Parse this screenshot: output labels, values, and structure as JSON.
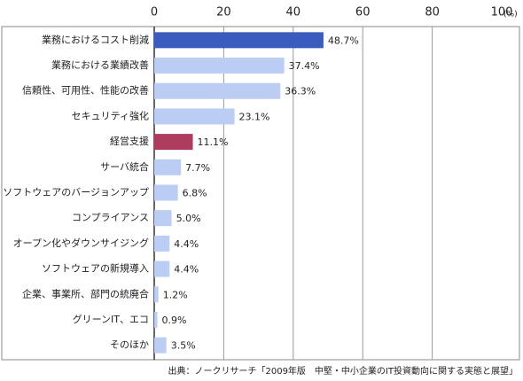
{
  "chart_data": {
    "type": "bar",
    "orientation": "horizontal",
    "categories": [
      "業務におけるコスト削減",
      "業務における業績改善",
      "信頼性、可用性、性能の改善",
      "セキュリティ強化",
      "経営支援",
      "サーバ統合",
      "ソフトウェアのバージョンアップ",
      "コンプライアンス",
      "オープン化やダウンサイジング",
      "ソフトウェアの新規導入",
      "企業、事業所、部門の統廃合",
      "グリーンIT、エコ",
      "そのほか"
    ],
    "values": [
      48.7,
      37.4,
      36.3,
      23.1,
      11.1,
      7.7,
      6.8,
      5.0,
      4.4,
      4.4,
      1.2,
      0.9,
      3.5
    ],
    "value_labels": [
      "48.7%",
      "37.4%",
      "36.3%",
      "23.1%",
      "11.1%",
      "7.7%",
      "6.8%",
      "5.0%",
      "4.4%",
      "4.4%",
      "1.2%",
      "0.9%",
      "3.5%"
    ],
    "colors": [
      "#3a5cbf",
      "#bccdf3",
      "#bccdf3",
      "#bccdf3",
      "#ad3c5e",
      "#bccdf3",
      "#bccdf3",
      "#bccdf3",
      "#bccdf3",
      "#bccdf3",
      "#bccdf3",
      "#bccdf3",
      "#bccdf3"
    ],
    "xlim": [
      0,
      100
    ],
    "xticks": [
      0,
      20,
      40,
      60,
      80,
      100
    ],
    "x_unit": "(%)",
    "grid": true,
    "source": "出典：ノークリサーチ「2009年版　中堅・中小企業のIT投資動向に関する実態と展望」"
  }
}
